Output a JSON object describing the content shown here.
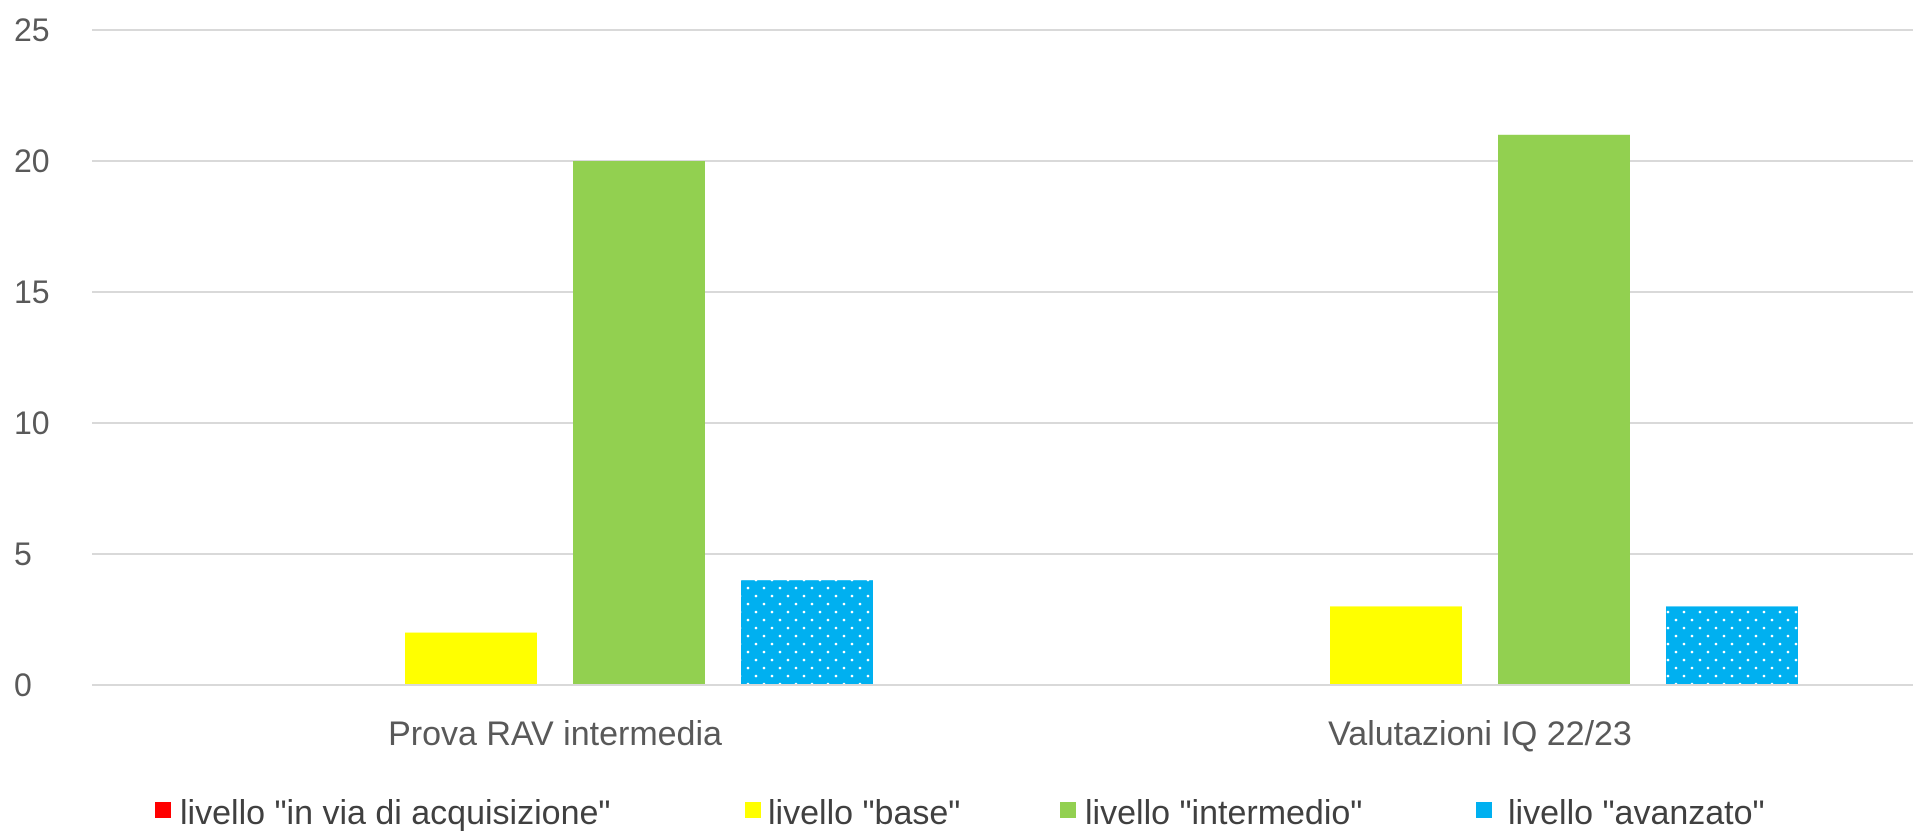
{
  "chart_data": {
    "type": "bar",
    "categories": [
      "Prova RAV intermedia",
      "Valutazioni IQ 22/23"
    ],
    "series": [
      {
        "name": "livello \"in via di acquisizione\"",
        "values": [
          0,
          0
        ],
        "color": "#ff0000",
        "pattern": "solid"
      },
      {
        "name": "livello \"base\"",
        "values": [
          2,
          3
        ],
        "color": "#ffff00",
        "pattern": "solid"
      },
      {
        "name": "livello \"intermedio\"",
        "values": [
          20,
          21
        ],
        "color": "#92d050",
        "pattern": "solid"
      },
      {
        "name": "livello \"avanzato\"",
        "values": [
          4,
          3
        ],
        "color": "#00b0f0",
        "pattern": "dotted"
      }
    ],
    "yticks": [
      "0",
      "5",
      "10",
      "15",
      "20",
      "25"
    ],
    "ylim": [
      0,
      25
    ],
    "title": "",
    "xlabel": "",
    "ylabel": "",
    "grid": true,
    "legend_position": "bottom"
  }
}
